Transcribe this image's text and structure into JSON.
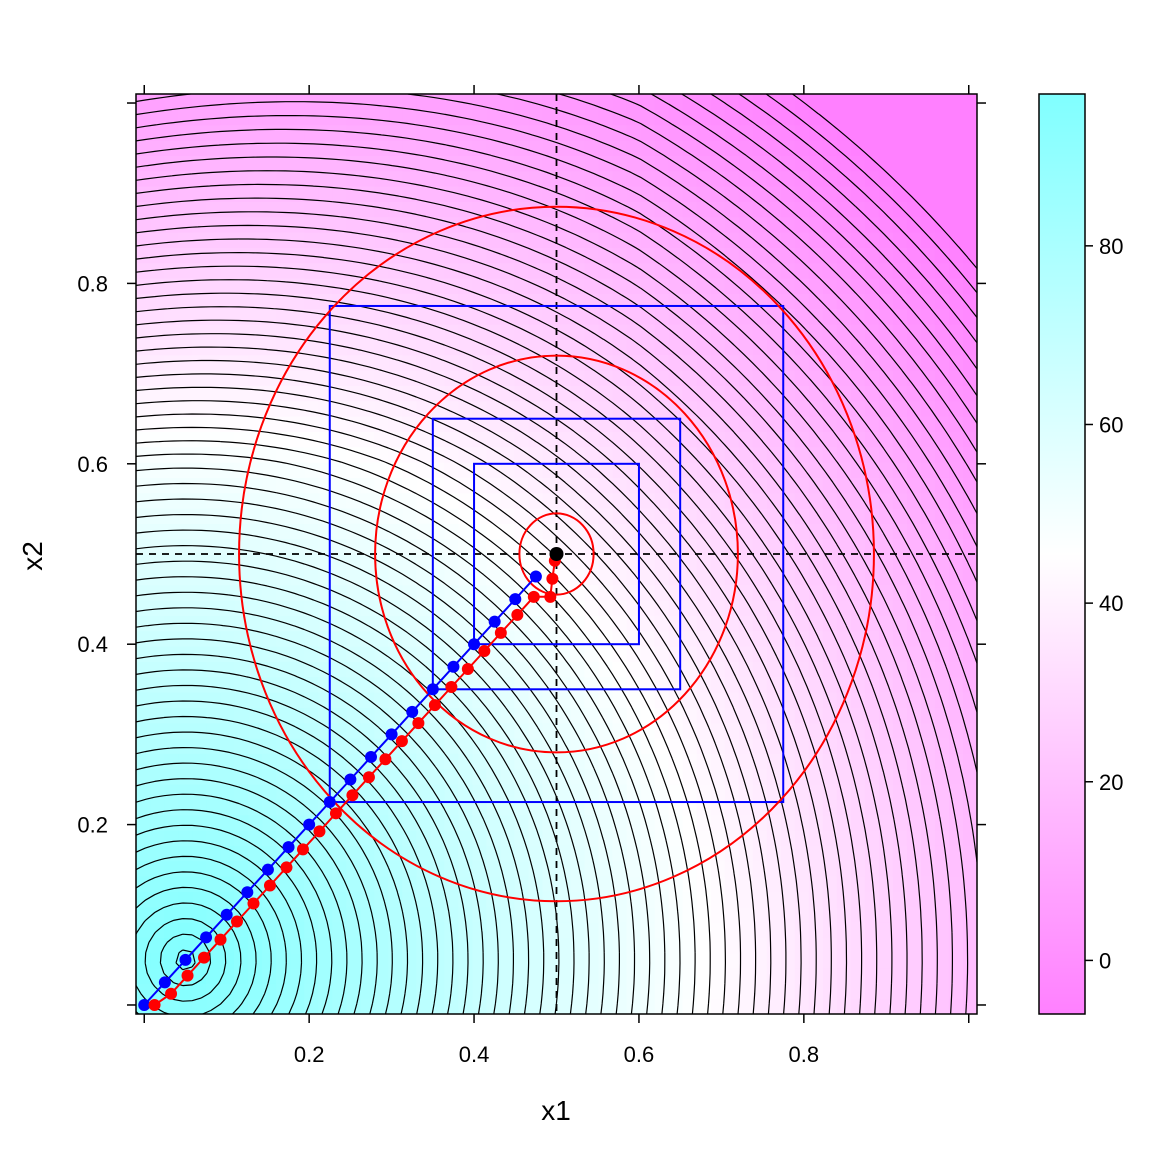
{
  "chart_data": {
    "type": "heatmap",
    "title": "",
    "xlabel": "x1",
    "ylabel": "x2",
    "xlim": [
      -0.01,
      1.01
    ],
    "ylim": [
      -0.01,
      1.01
    ],
    "x_ticks": [
      0.2,
      0.4,
      0.6,
      0.8
    ],
    "x_tick_labels": [
      "0.2",
      "0.4",
      "0.6",
      "0.8"
    ],
    "y_ticks": [
      0.2,
      0.4,
      0.6,
      0.8
    ],
    "y_tick_labels": [
      "0.2",
      "0.4",
      "0.6",
      "0.8"
    ],
    "colorbar": {
      "range": [
        -6,
        97
      ],
      "ticks": [
        0,
        20,
        40,
        60,
        80
      ],
      "tick_labels": [
        "0",
        "20",
        "40",
        "60",
        "80"
      ],
      "low_color": "#ff80ff",
      "mid_color": "#ffffff",
      "high_color": "#80ffff"
    },
    "reference_point": {
      "x1": 0.5,
      "x2": 0.5,
      "color": "#000000"
    },
    "reference_lines": {
      "x1": 0.5,
      "x2": 0.5,
      "style": "dashed"
    },
    "squares": {
      "color": "#0000ff",
      "center": [
        0.5,
        0.5
      ],
      "half_widths": [
        0.1,
        0.15,
        0.275
      ]
    },
    "circles": {
      "color": "#ff0000",
      "center": [
        0.5,
        0.5
      ],
      "radii": [
        0.045,
        0.22,
        0.385
      ]
    },
    "series": [
      {
        "color": "#0000ff",
        "x": [
          0.0,
          0.025,
          0.05,
          0.075,
          0.1,
          0.125,
          0.15,
          0.175,
          0.2,
          0.225,
          0.25,
          0.275,
          0.3,
          0.325,
          0.35,
          0.375,
          0.4,
          0.425,
          0.45,
          0.475
        ],
        "y": [
          0.0,
          0.025,
          0.05,
          0.075,
          0.1,
          0.125,
          0.15,
          0.175,
          0.2,
          0.225,
          0.25,
          0.275,
          0.3,
          0.325,
          0.35,
          0.375,
          0.4,
          0.425,
          0.45,
          0.475
        ]
      },
      {
        "color": "#ff0000",
        "x": [
          0.0125,
          0.0325,
          0.0525,
          0.0725,
          0.0925,
          0.1125,
          0.1325,
          0.1525,
          0.1725,
          0.1925,
          0.2125,
          0.2325,
          0.2525,
          0.2725,
          0.2925,
          0.3125,
          0.3325,
          0.3525,
          0.3725,
          0.3925,
          0.4125,
          0.4325,
          0.4525,
          0.4725,
          0.4925,
          0.495,
          0.498
        ],
        "y": [
          0.0,
          0.0125,
          0.0325,
          0.0525,
          0.0725,
          0.0925,
          0.1125,
          0.1325,
          0.1525,
          0.1725,
          0.1925,
          0.2125,
          0.2325,
          0.2525,
          0.2725,
          0.2925,
          0.3125,
          0.3325,
          0.3525,
          0.3725,
          0.3925,
          0.4125,
          0.4325,
          0.4525,
          0.4525,
          0.4725,
          0.4925
        ]
      }
    ],
    "field": {
      "min_x1": 0.05,
      "min_x2": 0.05,
      "contour_levels_step": 1.5
    }
  }
}
